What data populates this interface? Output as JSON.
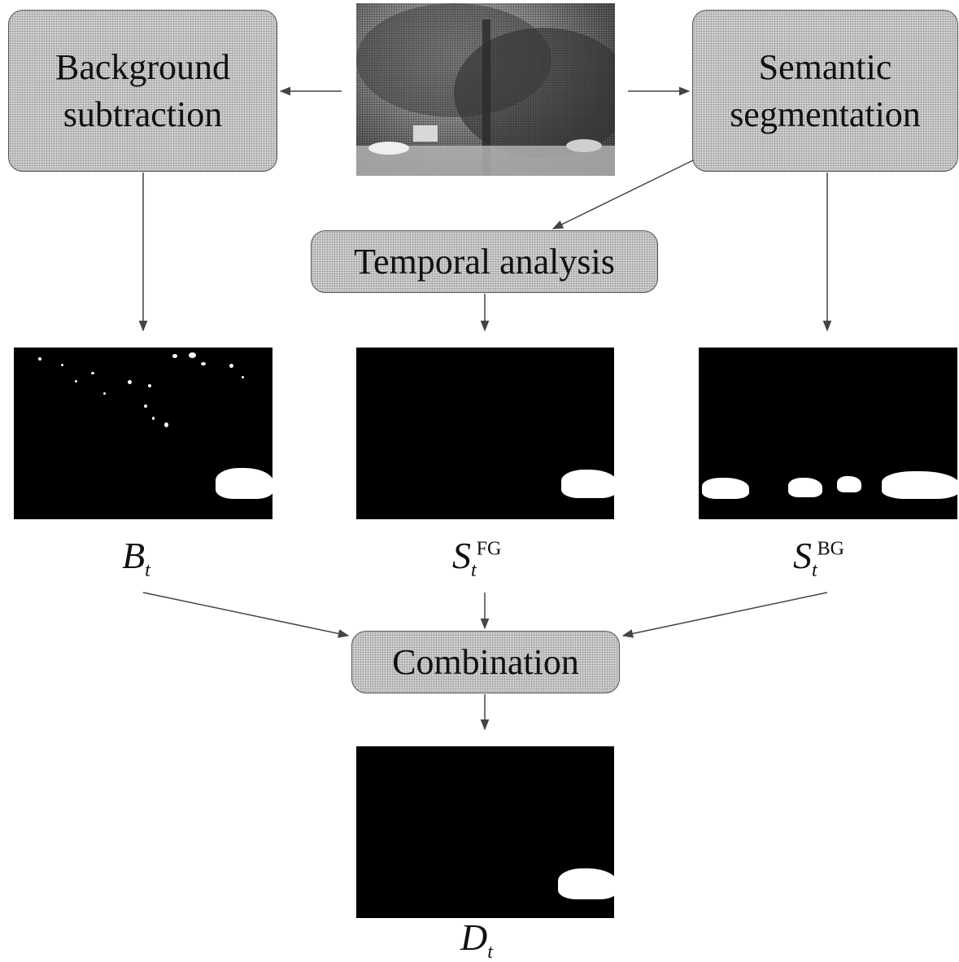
{
  "nodes": {
    "background_subtraction": "Background\nsubtraction",
    "semantic_segmentation": "Semantic\nsegmentation",
    "temporal_analysis": "Temporal analysis",
    "combination": "Combination"
  },
  "labels": {
    "bt_main": "B",
    "bt_sub": "t",
    "sfg_main": "S",
    "sfg_sub": "t",
    "sfg_sup": "FG",
    "sbg_main": "S",
    "sbg_sub": "t",
    "sbg_sup": "BG",
    "dt_main": "D",
    "dt_sub": "t"
  },
  "colors": {
    "box_fill": "#d2d2d2",
    "mask_background": "#000000",
    "mask_foreground": "#ffffff",
    "arrow": "#444444"
  }
}
